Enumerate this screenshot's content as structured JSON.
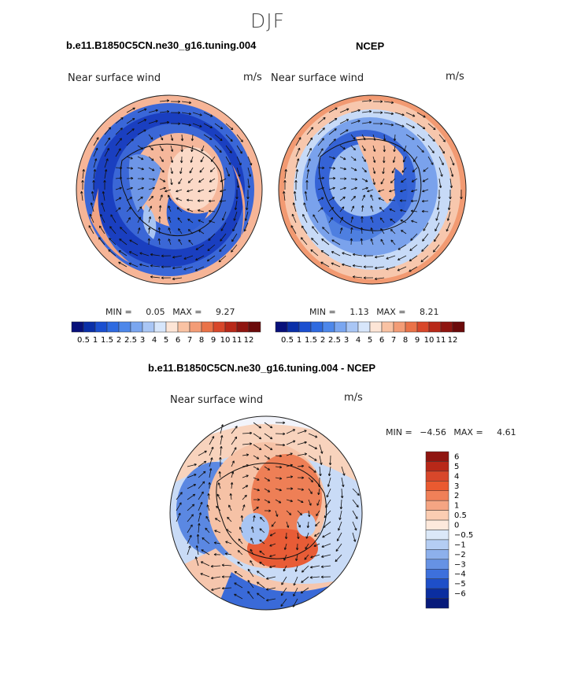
{
  "figure": {
    "season_title": "DJF",
    "unit": "m/s",
    "variable_label": "Near surface wind"
  },
  "chart_data": [
    {
      "type": "heatmap",
      "projection": "south-polar-stereographic",
      "title": "b.e11.B1850C5CN.ne30_g16.tuning.004",
      "subtitle": "Near surface wind",
      "units": "m/s",
      "min_label": "MIN =",
      "min_value": "0.05",
      "max_label": "MAX =",
      "max_value": "9.27",
      "min": 0.05,
      "max": 9.27,
      "colorbar_levels": [
        "0.5",
        "1",
        "1.5",
        "2",
        "2.5",
        "3",
        "4",
        "5",
        "6",
        "7",
        "8",
        "9",
        "10",
        "11",
        "12"
      ],
      "colors": [
        "#08107a",
        "#0a2fa8",
        "#1a4fd0",
        "#2e6ae0",
        "#4d87ea",
        "#7aa6f0",
        "#a9c6f5",
        "#d7e6fb",
        "#fde5d6",
        "#f9c2a3",
        "#f39c76",
        "#ea7248",
        "#d8472a",
        "#b82818",
        "#8f1510",
        "#6b0a0a"
      ]
    },
    {
      "type": "heatmap",
      "projection": "south-polar-stereographic",
      "title": "NCEP",
      "subtitle": "Near surface wind",
      "units": "m/s",
      "min_label": "MIN =",
      "min_value": "1.13",
      "max_label": "MAX =",
      "max_value": "8.21",
      "min": 1.13,
      "max": 8.21,
      "colorbar_levels": [
        "0.5",
        "1",
        "1.5",
        "2",
        "2.5",
        "3",
        "4",
        "5",
        "6",
        "7",
        "8",
        "9",
        "10",
        "11",
        "12"
      ],
      "colors": [
        "#08107a",
        "#0a2fa8",
        "#1a4fd0",
        "#2e6ae0",
        "#4d87ea",
        "#7aa6f0",
        "#a9c6f5",
        "#d7e6fb",
        "#fde5d6",
        "#f9c2a3",
        "#f39c76",
        "#ea7248",
        "#d8472a",
        "#b82818",
        "#8f1510",
        "#6b0a0a"
      ]
    },
    {
      "type": "heatmap",
      "projection": "south-polar-stereographic",
      "title": "b.e11.B1850C5CN.ne30_g16.tuning.004 - NCEP",
      "subtitle": "Near surface wind",
      "units": "m/s",
      "min_label": "MIN =",
      "min_value": "−4.56",
      "max_label": "MAX =",
      "max_value": "4.61",
      "min": -4.56,
      "max": 4.61,
      "colorbar_levels": [
        "6",
        "5",
        "4",
        "3",
        "2",
        "1",
        "0.5",
        "0",
        "−0.5",
        "−1",
        "−2",
        "−3",
        "−4",
        "−5",
        "−6"
      ],
      "colors": [
        "#8f1510",
        "#b82818",
        "#d8472a",
        "#ea5a30",
        "#f08058",
        "#f5a583",
        "#fbcdb2",
        "#fde9dc",
        "#dbe8f8",
        "#b4cdf3",
        "#8db0ec",
        "#6692e4",
        "#3d70dc",
        "#1e4fc8",
        "#0b2ea0",
        "#071a7a"
      ]
    }
  ]
}
